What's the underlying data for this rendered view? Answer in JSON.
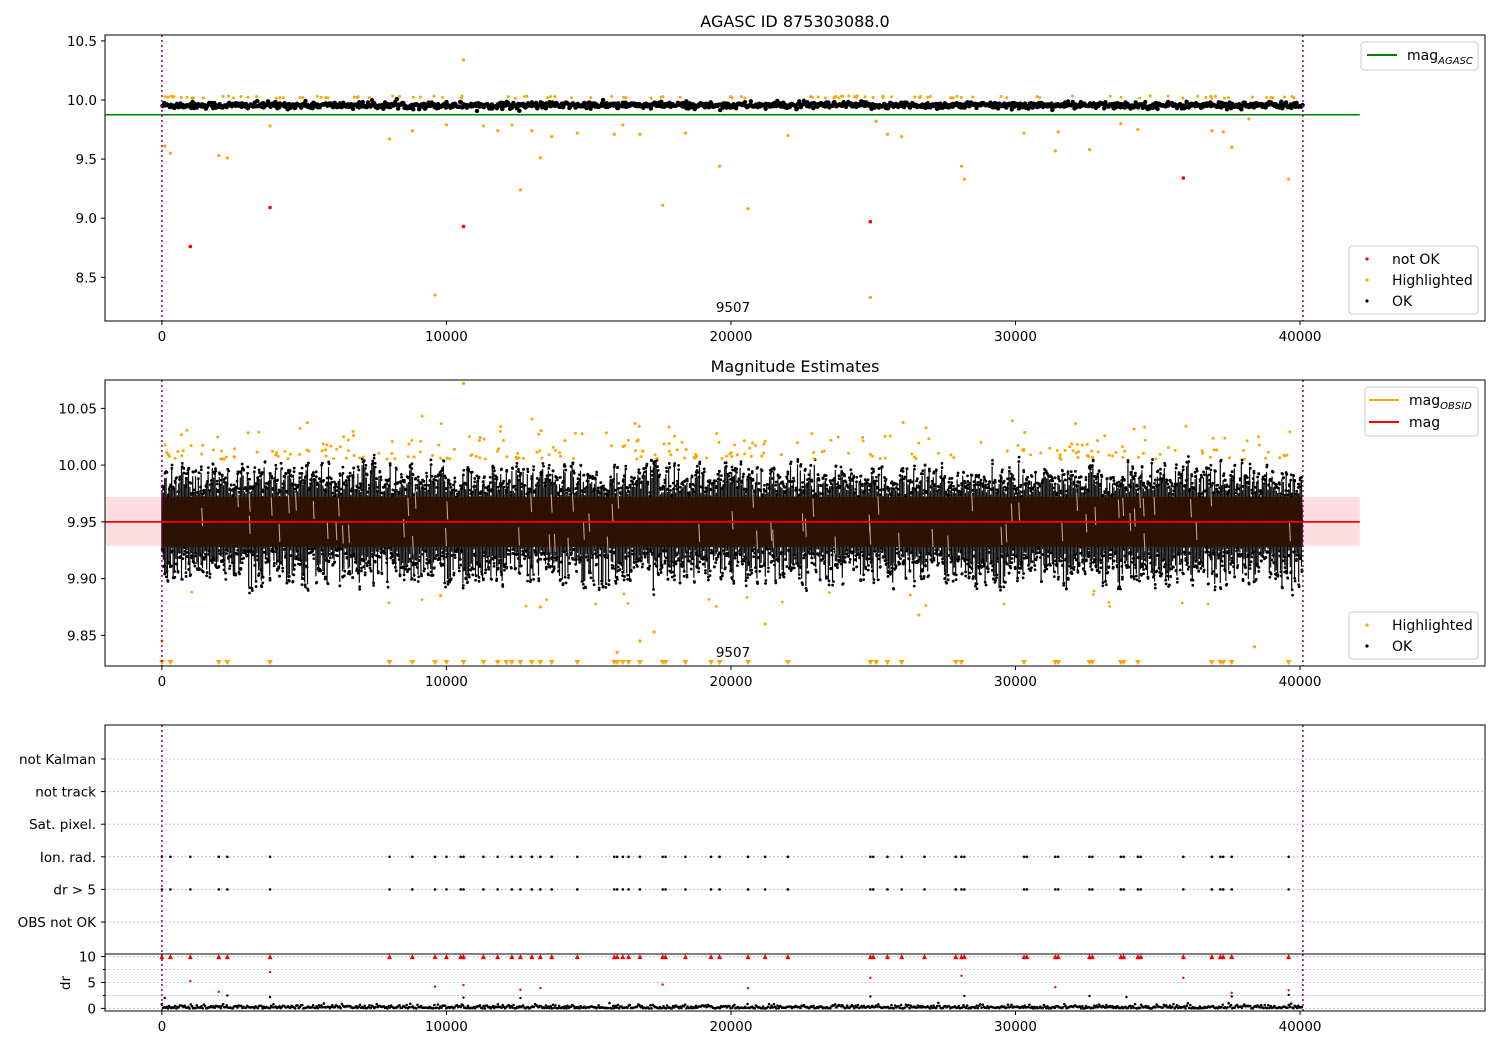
{
  "figure": {
    "colors": {
      "ok": "#000000",
      "highlighted": "#ffa500",
      "not_ok": "#ff0000",
      "agasc_line": "#008000",
      "mag_line": "#ff0000",
      "mag_obsid": "#ffa500",
      "band": "#ffb6c1",
      "dense_core": "#2d1100",
      "boundary": "#800080"
    }
  },
  "chart_data": [
    {
      "type": "scatter",
      "title": "AGASC ID 875303088.0",
      "xlim": [
        -2000,
        46500
      ],
      "ylim": [
        8.13,
        10.55
      ],
      "x_ticks": [
        0,
        10000,
        20000,
        30000,
        40000
      ],
      "x_tick_labels": [
        "0",
        "10000",
        "20000",
        "30000",
        "40000"
      ],
      "y_ticks": [
        8.5,
        9.0,
        9.5,
        10.0,
        10.5
      ],
      "y_tick_labels": [
        "8.5",
        "9.0",
        "9.5",
        "10.0",
        "10.5"
      ],
      "annotation": "9507",
      "annotation_x": 20000,
      "observation_boundaries": [
        0,
        40100
      ],
      "reference_line": {
        "name": "mag",
        "subscript": "AGASC",
        "value": 9.875,
        "x_range": [
          -2000,
          42100
        ]
      },
      "ok_band": {
        "x_range": [
          0,
          40100
        ],
        "center": 9.955,
        "spread": 0.045
      },
      "series": [
        {
          "name": "not OK",
          "x": [
            1000,
            3800,
            10600,
            24900,
            35900
          ],
          "y": [
            8.76,
            9.09,
            8.93,
            8.97,
            9.34
          ]
        },
        {
          "name": "Highlighted",
          "x": [
            100,
            300,
            2000,
            2300,
            3800,
            8000,
            8800,
            9600,
            10000,
            10600,
            11300,
            11800,
            12300,
            12600,
            13000,
            13300,
            13700,
            14600,
            15900,
            16200,
            16800,
            17600,
            18400,
            19600,
            20600,
            22000,
            24900,
            25100,
            25500,
            26000,
            28100,
            28200,
            30300,
            31400,
            31500,
            32600,
            33700,
            34300,
            36900,
            37300,
            37600,
            38200,
            39600
          ],
          "y": [
            9.61,
            9.55,
            9.53,
            9.51,
            9.78,
            9.67,
            9.74,
            8.35,
            9.79,
            10.34,
            9.78,
            9.74,
            9.79,
            9.24,
            9.74,
            9.51,
            9.69,
            9.72,
            9.71,
            9.79,
            9.71,
            9.11,
            9.72,
            9.44,
            9.08,
            9.7,
            8.33,
            9.82,
            9.71,
            9.69,
            9.44,
            9.33,
            9.72,
            9.57,
            9.73,
            9.58,
            9.8,
            9.75,
            9.74,
            9.73,
            9.6,
            9.84,
            9.33
          ]
        },
        {
          "name": "OK",
          "x_range": [
            0,
            40100
          ],
          "y_center": 9.955,
          "y_spread": 0.04
        }
      ],
      "legend_lines": [
        {
          "label": "mag",
          "subscript": "AGASC"
        }
      ],
      "legend_points": [
        "not OK",
        "Highlighted",
        "OK"
      ]
    },
    {
      "type": "scatter",
      "title": "Magnitude Estimates",
      "xlim": [
        -2000,
        46500
      ],
      "ylim": [
        9.823,
        10.075
      ],
      "x_ticks": [
        0,
        10000,
        20000,
        30000,
        40000
      ],
      "x_tick_labels": [
        "0",
        "10000",
        "20000",
        "30000",
        "40000"
      ],
      "y_ticks": [
        9.85,
        9.9,
        9.95,
        10.0,
        10.05
      ],
      "y_tick_labels": [
        "9.85",
        "9.90",
        "9.95",
        "10.00",
        "10.05"
      ],
      "annotation": "9507",
      "annotation_x": 20000,
      "observation_boundaries": [
        0,
        40100
      ],
      "mag": 9.95,
      "mag_band": [
        9.929,
        9.972
      ],
      "band_x_range": [
        -2000,
        42100
      ],
      "ok_cloud": {
        "x_range": [
          0,
          40100
        ],
        "center": 9.95,
        "core_half_width": 0.022,
        "envelope": [
          9.89,
          10.005
        ]
      },
      "below_range_markers_x": [
        0,
        300,
        2000,
        2300,
        3800,
        8000,
        8800,
        9600,
        10000,
        10600,
        11300,
        11800,
        12100,
        12300,
        12600,
        13000,
        13300,
        13700,
        14600,
        15900,
        16000,
        16200,
        16400,
        16800,
        17600,
        17700,
        18400,
        19300,
        19600,
        20600,
        22000,
        24900,
        25100,
        25500,
        26000,
        27900,
        28100,
        30300,
        31400,
        31500,
        32600,
        32700,
        33700,
        33800,
        34300,
        36900,
        37200,
        37300,
        37600,
        39600
      ],
      "highlighted": {
        "x": [
          0,
          16000,
          16800,
          17300,
          21200,
          26600,
          38400,
          10600,
          13300,
          9800
        ],
        "y": [
          9.845,
          9.835,
          9.845,
          9.853,
          9.86,
          9.868,
          9.84,
          10.072,
          9.875,
          9.885
        ]
      },
      "legend_lines": [
        {
          "label": "mag",
          "subscript": "OBSID"
        },
        {
          "label": "mag"
        }
      ],
      "legend_points": [
        "Highlighted",
        "OK"
      ]
    },
    {
      "type": "scatter",
      "title": "",
      "xlim": [
        -2000,
        46500
      ],
      "x_ticks": [
        0,
        10000,
        20000,
        30000,
        40000
      ],
      "x_tick_labels": [
        "0",
        "10000",
        "20000",
        "30000",
        "40000"
      ],
      "observation_boundaries": [
        0,
        40100
      ],
      "flag_rows": [
        "not Kalman",
        "not track",
        "Sat. pixel.",
        "Ion. rad.",
        "dr > 5",
        "OBS not OK"
      ],
      "flag_hits": {
        "Ion. rad.": [
          0,
          300,
          1000,
          2000,
          2300,
          3800,
          8000,
          8800,
          9600,
          10000,
          10500,
          10600,
          11300,
          11800,
          12300,
          12600,
          13000,
          13300,
          13700,
          14600,
          15900,
          16000,
          16200,
          16400,
          16800,
          17600,
          17700,
          18400,
          19300,
          19600,
          20600,
          21200,
          22000,
          24900,
          25000,
          25500,
          26000,
          26800,
          27900,
          28100,
          28200,
          30300,
          30400,
          31400,
          31500,
          32600,
          32700,
          33700,
          33800,
          34300,
          34400,
          35900,
          36900,
          37200,
          37300,
          37600,
          39600
        ],
        "dr > 5": [
          0,
          300,
          1000,
          2000,
          2300,
          3800,
          8000,
          8800,
          9600,
          10000,
          10500,
          10600,
          11300,
          11800,
          12300,
          12600,
          13000,
          13300,
          13700,
          14600,
          15900,
          16000,
          16200,
          16400,
          16800,
          17600,
          17700,
          18400,
          19300,
          19600,
          20600,
          21200,
          22000,
          24900,
          25000,
          25500,
          26000,
          26800,
          27900,
          28100,
          28200,
          30300,
          30400,
          31400,
          31500,
          32600,
          32700,
          33700,
          33800,
          34300,
          34400,
          35900,
          36900,
          37200,
          37300,
          37600,
          39600
        ]
      },
      "dr_panel": {
        "ylabel": "dr",
        "ylim": [
          -0.5,
          10.5
        ],
        "y_ticks": [
          0,
          5,
          10
        ],
        "y_tick_labels": [
          "0",
          "5",
          "10"
        ],
        "capped_red_x": [
          0,
          300,
          1000,
          2000,
          2300,
          3800,
          8000,
          8800,
          9600,
          10000,
          10500,
          10600,
          11300,
          11800,
          12300,
          12600,
          13000,
          13300,
          13700,
          14600,
          15900,
          16000,
          16200,
          16400,
          16800,
          17600,
          17700,
          18400,
          19300,
          19600,
          20600,
          21200,
          22000,
          24900,
          25000,
          25500,
          26000,
          26800,
          27900,
          28100,
          28200,
          30300,
          30400,
          31400,
          31500,
          32600,
          32700,
          33700,
          33800,
          34300,
          34400,
          35900,
          36900,
          37200,
          37300,
          37600,
          39600
        ],
        "red_points": {
          "x": [
            1000,
            2000,
            3800,
            9600,
            10600,
            12600,
            13300,
            17600,
            20600,
            24900,
            28100,
            31400,
            35900,
            37600,
            39600
          ],
          "y": [
            5.3,
            3.2,
            7.0,
            4.2,
            4.5,
            3.6,
            3.9,
            4.6,
            3.9,
            5.9,
            6.3,
            4.1,
            5.9,
            3.0,
            3.5
          ]
        },
        "black_outliers": {
          "x": [
            100,
            2300,
            3800,
            10600,
            12600,
            24900,
            28200,
            32600,
            33900,
            37600,
            39600
          ],
          "y": [
            2.0,
            2.5,
            2.2,
            2.1,
            2.0,
            2.3,
            2.4,
            2.4,
            2.2,
            2.3,
            2.6
          ]
        }
      }
    }
  ]
}
